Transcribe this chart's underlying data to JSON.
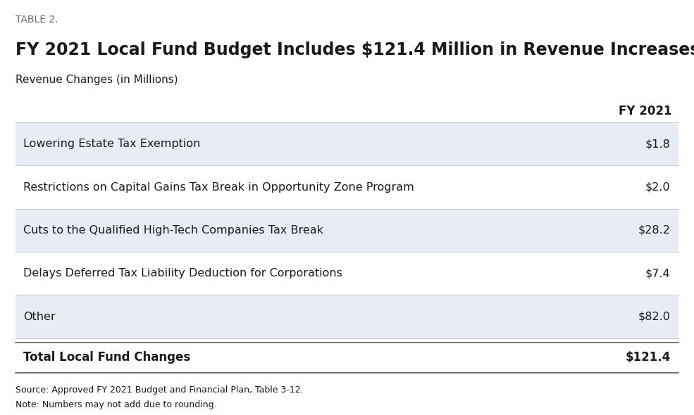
{
  "table_label": "TABLE 2.",
  "title": "FY 2021 Local Fund Budget Includes $121.4 Million in Revenue Increases",
  "subtitle": "Revenue Changes (in Millions)",
  "col_header": "FY 2021",
  "rows": [
    {
      "label": "Lowering Estate Tax Exemption",
      "value": "$1.8",
      "shaded": true
    },
    {
      "label": "Restrictions on Capital Gains Tax Break in Opportunity Zone Program",
      "value": "$2.0",
      "shaded": false
    },
    {
      "label": "Cuts to the Qualified High-Tech Companies Tax Break",
      "value": "$28.2",
      "shaded": true
    },
    {
      "label": "Delays Deferred Tax Liability Deduction for Corporations",
      "value": "$7.4",
      "shaded": false
    },
    {
      "label": "Other",
      "value": "$82.0",
      "shaded": true
    }
  ],
  "total_label": "Total Local Fund Changes",
  "total_value": "$121.4",
  "source_line1": "Source: Approved FY 2021 Budget and Financial Plan, Table 3-12.",
  "source_line2": "Note: Numbers may not add due to rounding.",
  "bg_color": "#ffffff",
  "shaded_color": "#e8edf5",
  "text_color": "#1a1a1a",
  "table_label_color": "#666666",
  "line_color_light": "#cccccc",
  "line_color_dark": "#555555"
}
